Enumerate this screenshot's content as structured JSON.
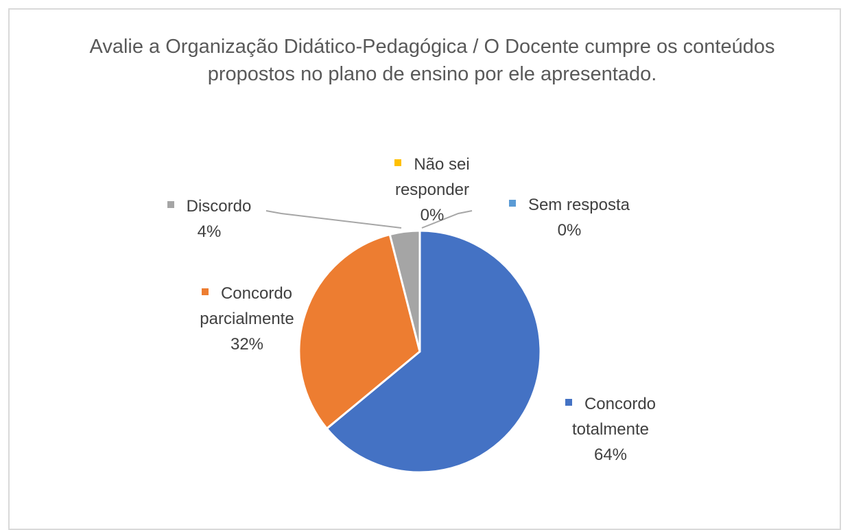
{
  "chart_data": {
    "type": "pie",
    "title": "Avalie a Organização Didático-Pedagógica / O Docente cumpre os conteúdos propostos no plano de ensino por ele apresentado.",
    "categories": [
      "Concordo totalmente",
      "Concordo parcialmente",
      "Discordo",
      "Não sei responder",
      "Sem resposta"
    ],
    "values": [
      64,
      32,
      4,
      0,
      0
    ],
    "value_labels": [
      "64%",
      "32%",
      "4%",
      "0%",
      "0%"
    ],
    "colors": [
      "#4472c4",
      "#ed7d31",
      "#a5a5a5",
      "#ffc000",
      "#5b9bd5"
    ]
  }
}
